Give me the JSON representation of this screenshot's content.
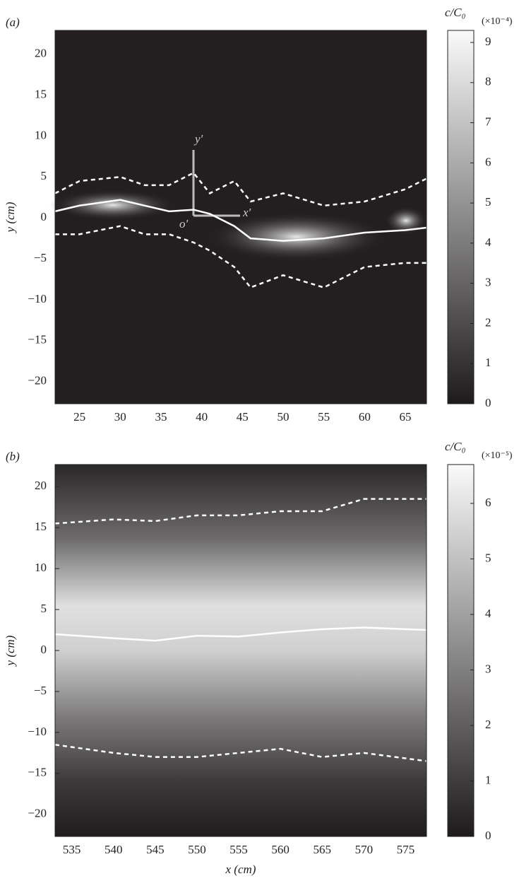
{
  "chart_data": [
    {
      "type": "line",
      "panel_label": "(a)",
      "ylabel": "y (cm)",
      "annotations": [
        "y′",
        "x′",
        "o′"
      ],
      "xlim": [
        22,
        67.6
      ],
      "ylim": [
        -22.7,
        22.9
      ],
      "xticks": [
        25,
        30,
        35,
        40,
        45,
        50,
        55,
        60,
        65
      ],
      "yticks": [
        20,
        15,
        10,
        5,
        0,
        {
          "value": -5,
          "label": "−5"
        },
        {
          "value": -10,
          "label": "−10"
        },
        {
          "value": -15,
          "label": "−15"
        },
        {
          "value": -20,
          "label": "−20"
        }
      ],
      "x": [
        22,
        25,
        30,
        33,
        36,
        39,
        41,
        44,
        46,
        50,
        55,
        60,
        65,
        67.6
      ],
      "series": [
        {
          "color": "#ffffff",
          "dash": false,
          "values": [
            0.8,
            1.5,
            2.2,
            1.5,
            0.8,
            1.0,
            0.5,
            -1,
            -2.5,
            -2.8,
            -2.5,
            -1.8,
            -1.5,
            -1.2
          ]
        },
        {
          "color": "#ffffff",
          "dash": true,
          "values": [
            3,
            4.5,
            5,
            4,
            4,
            5.5,
            3,
            4.5,
            2,
            3,
            1.5,
            2,
            3.5,
            4.8
          ]
        },
        {
          "color": "#ffffff",
          "dash": true,
          "values": [
            -2,
            -2,
            -1,
            -2,
            -2,
            -3,
            -4,
            -6,
            -8.5,
            -7,
            -8.5,
            -6,
            -5.5,
            -5.5
          ]
        }
      ],
      "colorbar": {
        "label": "c/C₀",
        "unit_label": "(×10⁻⁴)",
        "lim": [
          0,
          9.3
        ],
        "ticks": [
          0,
          1,
          2,
          3,
          4,
          5,
          6,
          7,
          8,
          9
        ]
      }
    },
    {
      "type": "line",
      "panel_label": "(b)",
      "ylabel": "y (cm)",
      "xlabel": "x (cm)",
      "xlim": [
        533,
        577.5
      ],
      "ylim": [
        -22.7,
        22.7
      ],
      "xticks": [
        535,
        540,
        545,
        550,
        555,
        560,
        565,
        570,
        575
      ],
      "yticks": [
        20,
        15,
        10,
        5,
        0,
        {
          "value": -5,
          "label": "−5"
        },
        {
          "value": -10,
          "label": "−10"
        },
        {
          "value": -15,
          "label": "−15"
        },
        {
          "value": -20,
          "label": "−20"
        }
      ],
      "x": [
        533,
        540,
        545,
        550,
        555,
        560,
        565,
        570,
        577.5
      ],
      "series": [
        {
          "color": "#ffffff",
          "dash": false,
          "values": [
            2,
            1.5,
            1.2,
            1.8,
            1.7,
            2.2,
            2.6,
            2.8,
            2.5
          ]
        },
        {
          "color": "#ffffff",
          "dash": true,
          "values": [
            15.5,
            16,
            15.8,
            16.5,
            16.5,
            17,
            17,
            18.5,
            18.5
          ]
        },
        {
          "color": "#ffffff",
          "dash": true,
          "values": [
            -11.5,
            -12.5,
            -13,
            -13,
            -12.5,
            -12,
            -13,
            -12.5,
            -13.5
          ]
        }
      ],
      "colorbar": {
        "label": "c/C₀",
        "unit_label": "(×10⁻⁵)",
        "lim": [
          0,
          6.7
        ],
        "ticks": [
          0,
          1,
          2,
          3,
          4,
          5,
          6
        ]
      }
    }
  ]
}
